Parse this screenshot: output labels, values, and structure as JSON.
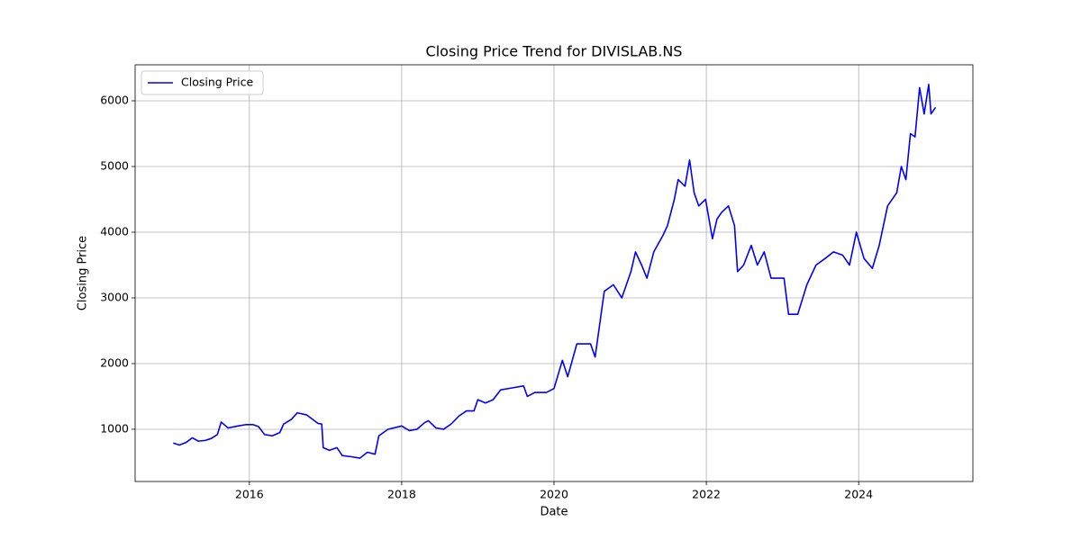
{
  "chart_data": {
    "type": "line",
    "title": "Closing Price Trend for DIVISLAB.NS",
    "x_label": "Date",
    "y_label": "Closing Price",
    "x": [
      2015.0,
      2015.08,
      2015.17,
      2015.25,
      2015.33,
      2015.42,
      2015.5,
      2015.58,
      2015.63,
      2015.72,
      2015.85,
      2015.95,
      2016.05,
      2016.12,
      2016.2,
      2016.3,
      2016.4,
      2016.45,
      2016.55,
      2016.63,
      2016.75,
      2016.9,
      2016.95,
      2016.97,
      2017.05,
      2017.15,
      2017.22,
      2017.35,
      2017.45,
      2017.55,
      2017.65,
      2017.7,
      2017.82,
      2018.0,
      2018.1,
      2018.2,
      2018.3,
      2018.35,
      2018.45,
      2018.55,
      2018.65,
      2018.75,
      2018.85,
      2018.95,
      2019.0,
      2019.1,
      2019.2,
      2019.3,
      2019.45,
      2019.6,
      2019.65,
      2019.75,
      2019.9,
      2020.0,
      2020.11,
      2020.18,
      2020.3,
      2020.48,
      2020.54,
      2020.6,
      2020.66,
      2020.78,
      2020.89,
      2021.01,
      2021.07,
      2021.15,
      2021.22,
      2021.31,
      2021.43,
      2021.49,
      2021.58,
      2021.63,
      2021.72,
      2021.78,
      2021.84,
      2021.9,
      2021.99,
      2022.08,
      2022.14,
      2022.2,
      2022.29,
      2022.37,
      2022.41,
      2022.49,
      2022.59,
      2022.67,
      2022.76,
      2022.85,
      2022.91,
      2023.02,
      2023.08,
      2023.2,
      2023.32,
      2023.44,
      2023.56,
      2023.67,
      2023.79,
      2023.88,
      2023.97,
      2024.07,
      2024.18,
      2024.27,
      2024.38,
      2024.5,
      2024.56,
      2024.62,
      2024.68,
      2024.74,
      2024.8,
      2024.86,
      2024.92,
      2024.95,
      2025.01
    ],
    "series": [
      {
        "name": "Closing Price",
        "color": "#0000ff",
        "values": [
          790,
          760,
          800,
          870,
          820,
          830,
          860,
          920,
          1110,
          1020,
          1050,
          1070,
          1070,
          1040,
          920,
          900,
          950,
          1080,
          1150,
          1250,
          1220,
          1090,
          1080,
          720,
          680,
          720,
          600,
          580,
          560,
          650,
          620,
          900,
          1000,
          1050,
          980,
          1000,
          1100,
          1130,
          1020,
          1000,
          1080,
          1200,
          1280,
          1280,
          1450,
          1400,
          1450,
          1600,
          1630,
          1660,
          1500,
          1560,
          1560,
          1620,
          2050,
          1800,
          2300,
          2300,
          2100,
          2600,
          3100,
          3200,
          3000,
          3400,
          3700,
          3500,
          3300,
          3700,
          3950,
          4100,
          4500,
          4800,
          4700,
          5100,
          4600,
          4400,
          4500,
          3900,
          4200,
          4300,
          4400,
          4100,
          3400,
          3500,
          3800,
          3500,
          3700,
          3300,
          3300,
          3300,
          2750,
          2750,
          3200,
          3500,
          3600,
          3700,
          3650,
          3500,
          4000,
          3600,
          3450,
          3800,
          4400,
          4600,
          5000,
          4800,
          5500,
          5450,
          6200,
          5800,
          6250,
          5800,
          5900
        ]
      }
    ],
    "xlim": [
      2014.5,
      2025.5
    ],
    "xticks": [
      2016,
      2018,
      2020,
      2022,
      2024
    ],
    "ylim": [
      205,
      6548
    ],
    "yticks": [
      1000,
      2000,
      3000,
      4000,
      5000,
      6000
    ],
    "grid": true,
    "legend": "upper left"
  }
}
